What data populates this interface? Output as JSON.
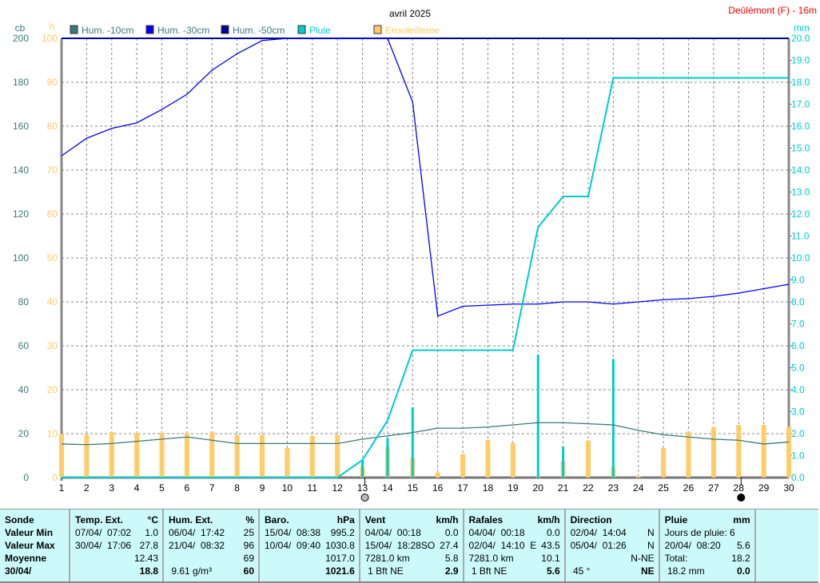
{
  "chart_data": {
    "type": "line",
    "title": "avril 2025",
    "station": "Deûlémont (F) - 16m",
    "x": [
      1,
      2,
      3,
      4,
      5,
      6,
      7,
      8,
      9,
      10,
      11,
      12,
      13,
      14,
      15,
      16,
      17,
      18,
      19,
      20,
      21,
      22,
      23,
      24,
      25,
      26,
      27,
      28,
      29,
      30
    ],
    "axes": {
      "left_cb": {
        "label": "cb",
        "range": [
          0,
          200
        ],
        "ticks": [
          0,
          20,
          40,
          60,
          80,
          100,
          120,
          140,
          160,
          180,
          200
        ]
      },
      "left_h": {
        "label": "h",
        "range": [
          0,
          100
        ],
        "ticks": [
          0,
          10,
          20,
          30,
          40,
          50,
          60,
          70,
          80,
          90,
          100
        ]
      },
      "right_mm": {
        "label": "mm",
        "range": [
          0,
          20
        ],
        "ticks": [
          "0.0",
          "1.0",
          "2.0",
          "3.0",
          "4.0",
          "5.0",
          "6.0",
          "7.0",
          "8.0",
          "9.0",
          "10.0",
          "11.0",
          "12.0",
          "13.0",
          "14.0",
          "15.0",
          "16.0",
          "17.0",
          "18.0",
          "19.0",
          "20.0"
        ]
      }
    },
    "grid": true,
    "legend_position": "top-left",
    "series": [
      {
        "name": "Hum. -10cm",
        "axis": "cb",
        "kind": "line",
        "color": "#3a7a78",
        "values": [
          15.3,
          15,
          15.5,
          16.5,
          17.5,
          18.5,
          17,
          15.5,
          15.5,
          15.5,
          15.5,
          15.5,
          17.5,
          19,
          20.5,
          22.5,
          22.5,
          23,
          24,
          25,
          25,
          24.5,
          24,
          21.5,
          19.5,
          18.5,
          17.5,
          17,
          15.3,
          16.2
        ]
      },
      {
        "name": "Hum. -30cm",
        "axis": "cb",
        "kind": "line",
        "color": "#0000ff",
        "values": [
          146.5,
          154.5,
          159,
          161.5,
          167.6,
          174.5,
          185.5,
          193,
          199,
          200,
          200,
          200,
          200,
          200,
          171,
          73.5,
          78,
          78.5,
          79,
          79,
          80,
          80,
          79,
          80,
          81,
          81.5,
          82.5,
          84,
          86,
          88
        ]
      },
      {
        "name": "Hum. -50cm",
        "axis": "cb",
        "kind": "line",
        "color": "#000099",
        "values": [
          200,
          200,
          200,
          200,
          200,
          200,
          200,
          200,
          200,
          200,
          200,
          200,
          200,
          200,
          200,
          200,
          200,
          200,
          200,
          200,
          200,
          200,
          200,
          200,
          200,
          200,
          200,
          200,
          200,
          200
        ]
      },
      {
        "name": "Pluie",
        "axis": "mm",
        "kind": "bar+cumulative",
        "color": "#00cccc",
        "values": [
          0,
          0,
          0,
          0,
          0,
          0,
          0,
          0,
          0,
          0,
          0,
          0,
          0.8,
          1.8,
          3.2,
          0,
          0,
          0,
          0,
          5.6,
          1.4,
          0,
          5.4,
          0,
          0,
          0,
          0,
          0,
          0,
          0
        ],
        "cumulative": [
          0,
          0,
          0,
          0,
          0,
          0,
          0,
          0,
          0,
          0,
          0,
          0,
          0.8,
          2.6,
          5.8,
          5.8,
          5.8,
          5.8,
          5.8,
          11.4,
          12.8,
          12.8,
          18.2,
          18.2,
          18.2,
          18.2,
          18.2,
          18.2,
          18.2,
          18.2
        ]
      },
      {
        "name": "Ensoleilleme",
        "axis": "h",
        "kind": "bar",
        "color": "#ffcc66",
        "values": [
          10,
          9.8,
          10.4,
          10.2,
          10.2,
          10.2,
          10.4,
          9.8,
          9.8,
          6.8,
          9.6,
          9.8,
          2.6,
          7,
          4.6,
          1.2,
          5.4,
          8.6,
          7.9,
          0.2,
          3.8,
          8.5,
          2.5,
          0.3,
          6.8,
          10.5,
          11.5,
          12,
          12,
          11.6
        ]
      }
    ],
    "moon_phases": [
      {
        "day": 13,
        "phase": "full-moon"
      },
      {
        "day": 28,
        "phase": "new-moon"
      }
    ]
  },
  "table": {
    "cols": [
      {
        "header": "Sonde",
        "unit": "",
        "rows": [
          [
            "Valeur Min",
            ""
          ],
          [
            "Valeur Max",
            ""
          ],
          [
            "Moyenne",
            ""
          ],
          [
            "30/04/",
            ""
          ]
        ],
        "bold_labels": true
      },
      {
        "header": "Temp. Ext.",
        "unit": "°C",
        "rows": [
          [
            "07/04/  07:02",
            "1.0"
          ],
          [
            "30/04/  17:06",
            "27.8"
          ],
          [
            "",
            "12.43"
          ],
          [
            "",
            "18.8"
          ]
        ]
      },
      {
        "header": "Hum. Ext.",
        "unit": "%",
        "rows": [
          [
            "06/04/  17:42",
            "25"
          ],
          [
            "21/04/  08:32",
            "96"
          ],
          [
            "",
            "69"
          ],
          [
            " 9.61 g/m³",
            "60"
          ]
        ]
      },
      {
        "header": "Baro.",
        "unit": "hPa",
        "rows": [
          [
            "15/04/  08:38",
            "995.2"
          ],
          [
            "10/04/  09:40",
            "1030.8"
          ],
          [
            "",
            "1017.0"
          ],
          [
            "",
            "1021.6"
          ]
        ]
      },
      {
        "header": "Vent",
        "unit": "km/h",
        "rows": [
          [
            "04/04/  00:18",
            "0.0"
          ],
          [
            "15/04/  18:28SO",
            "27.4"
          ],
          [
            "7281.0 km",
            "5.8"
          ],
          [
            " 1 Bft NE",
            "2.9"
          ]
        ]
      },
      {
        "header": "Rafales",
        "unit": "km/h",
        "rows": [
          [
            "04/04/  00:18",
            "0.0"
          ],
          [
            "02/04/  14:10  E",
            "43.5"
          ],
          [
            "7281.0 km",
            "10.1"
          ],
          [
            " 1 Bft NE",
            "5.6"
          ]
        ]
      },
      {
        "header": "Direction",
        "unit": "",
        "rows": [
          [
            "02/04/  14:04",
            "N"
          ],
          [
            "05/04/  01:26",
            "N"
          ],
          [
            "",
            "N-NE"
          ],
          [
            " 45 °",
            "NE"
          ]
        ]
      },
      {
        "header": "Pluie",
        "unit": "mm",
        "rows": [
          [
            "Jours de pluie: 6",
            ""
          ],
          [
            "20/04/  08:20",
            "5.6"
          ],
          [
            "Total:",
            "18.2"
          ],
          [
            " 18.2 mm",
            "0.0"
          ]
        ]
      }
    ]
  }
}
